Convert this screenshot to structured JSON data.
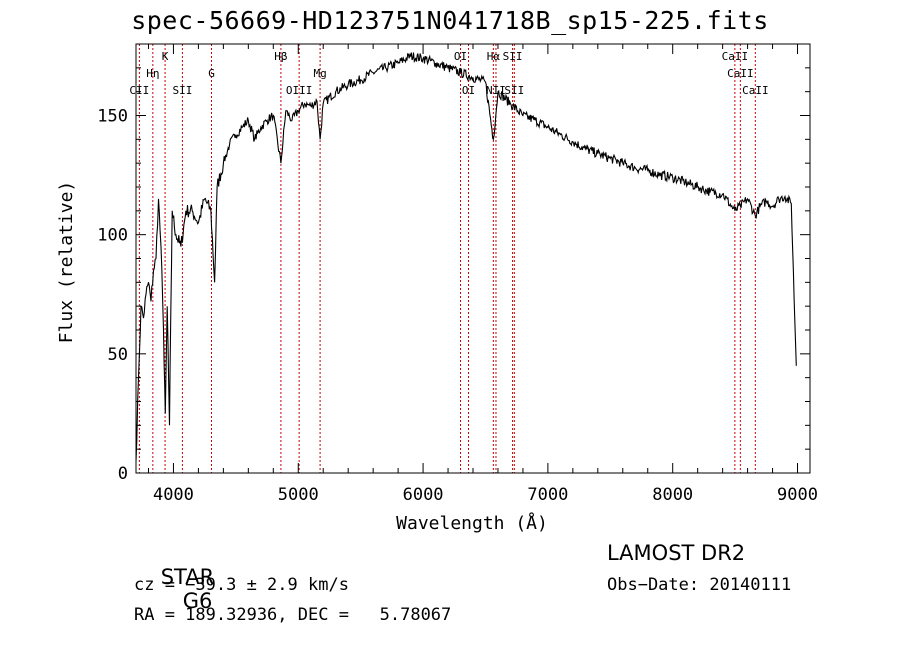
{
  "chart_data": {
    "type": "line",
    "title": "spec-56669-HD123751N041718B_sp15-225.fits",
    "xlabel": "Wavelength (Å)",
    "ylabel": "Flux (relative)",
    "xlim": [
      3700,
      9100
    ],
    "ylim": [
      0,
      180
    ],
    "xticks": [
      4000,
      5000,
      6000,
      7000,
      8000,
      9000
    ],
    "yticks": [
      0,
      50,
      100,
      150
    ],
    "grid": false,
    "series": [
      {
        "values_note": "continuum trace of the spectrum",
        "x": [
          3700,
          3720,
          3740,
          3760,
          3780,
          3800,
          3820,
          3840,
          3860,
          3880,
          3900,
          3920,
          3935,
          3950,
          3968,
          3990,
          4020,
          4060,
          4100,
          4150,
          4200,
          4250,
          4300,
          4330,
          4350,
          4400,
          4450,
          4500,
          4550,
          4600,
          4650,
          4700,
          4750,
          4800,
          4861,
          4900,
          4950,
          5000,
          5050,
          5100,
          5150,
          5175,
          5200,
          5300,
          5400,
          5500,
          5600,
          5700,
          5800,
          5900,
          6000,
          6100,
          6200,
          6300,
          6400,
          6500,
          6563,
          6600,
          6700,
          6800,
          6900,
          7000,
          7100,
          7200,
          7300,
          7400,
          7500,
          7600,
          7700,
          7800,
          7900,
          8000,
          8100,
          8200,
          8300,
          8400,
          8498,
          8542,
          8600,
          8662,
          8700,
          8750,
          8800,
          8850,
          8900,
          8950,
          8990
        ],
        "y": [
          5,
          40,
          70,
          65,
          75,
          80,
          72,
          85,
          90,
          115,
          95,
          60,
          25,
          70,
          20,
          110,
          100,
          95,
          110,
          110,
          105,
          115,
          110,
          80,
          120,
          130,
          138,
          142,
          145,
          148,
          140,
          145,
          148,
          150,
          130,
          152,
          148,
          152,
          155,
          154,
          156,
          140,
          155,
          160,
          163,
          165,
          168,
          170,
          172,
          175,
          174,
          172,
          170,
          168,
          166,
          164,
          140,
          160,
          155,
          150,
          148,
          145,
          142,
          139,
          136,
          134,
          132,
          130,
          128,
          127,
          125,
          124,
          122,
          120,
          118,
          117,
          110,
          112,
          115,
          108,
          112,
          114,
          112,
          115,
          116,
          113,
          45
        ]
      }
    ],
    "lines": [
      {
        "label": "CII",
        "x": 3727,
        "tier": 3
      },
      {
        "label": "Hη",
        "x": 3835,
        "tier": 2
      },
      {
        "label": "K",
        "x": 3933,
        "tier": 1
      },
      {
        "label": "SII",
        "x": 4072,
        "tier": 3
      },
      {
        "label": "G",
        "x": 4305,
        "tier": 2
      },
      {
        "label": "Hβ",
        "x": 4861,
        "tier": 1
      },
      {
        "label": "OIII",
        "x": 5007,
        "tier": 3
      },
      {
        "label": "Mg",
        "x": 5175,
        "tier": 2
      },
      {
        "label": "OI",
        "x": 6300,
        "tier": 1
      },
      {
        "label": "OI",
        "x": 6364,
        "tier": 3
      },
      {
        "label": "Hα",
        "x": 6563,
        "tier": 1
      },
      {
        "label": "NII",
        "x": 6584,
        "tier": 3
      },
      {
        "label": "SII",
        "x": 6717,
        "tier": 1
      },
      {
        "label": "SII",
        "x": 6731,
        "tier": 3
      },
      {
        "label": "CaII",
        "x": 8498,
        "tier": 1
      },
      {
        "label": "CaII",
        "x": 8542,
        "tier": 2
      },
      {
        "label": "CaII",
        "x": 8662,
        "tier": 3
      }
    ],
    "line_color": "#cc0000"
  },
  "info": {
    "object_class": "STAR",
    "subclass": "G6",
    "survey": "LAMOST DR2",
    "cz": "cz = −39.3 ± 2.9 km/s",
    "obs_date": "Obs−Date: 20140111",
    "coords": "RA = 189.32936, DEC =   5.78067"
  }
}
